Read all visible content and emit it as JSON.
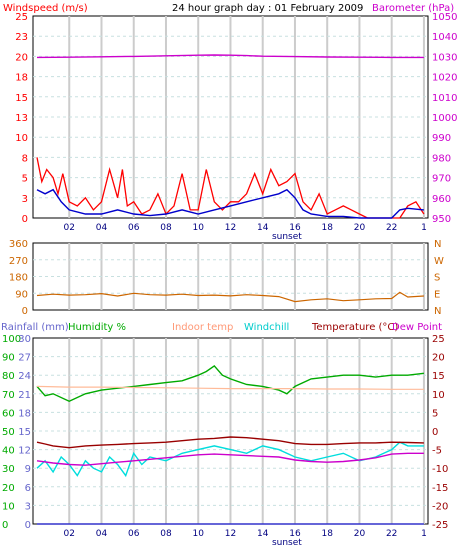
{
  "chart_data": [
    {
      "type": "line",
      "title": "24 hour graph day : 01 February 2009",
      "left_axis_label": "Windspeed (m/s)",
      "right_axis_label": "Barometer (hPa)",
      "x_ticks": [
        "02",
        "04",
        "06",
        "08",
        "10",
        "12",
        "14",
        "16",
        "18",
        "20",
        "22",
        "1"
      ],
      "x_note": "sunset",
      "y_left": {
        "range": [
          0,
          25
        ],
        "ticks": [
          "0",
          "3",
          "5",
          "8",
          "10",
          "13",
          "15",
          "18",
          "20",
          "23",
          "25"
        ]
      },
      "y_right": {
        "range": [
          950,
          1050
        ],
        "ticks": [
          "950",
          "960",
          "970",
          "980",
          "990",
          "1000",
          "1010",
          "1020",
          "1030",
          "1040",
          "1050"
        ]
      },
      "grid": true,
      "series": [
        {
          "name": "Barometer (hPa)",
          "axis": "right",
          "color": "#cc00cc",
          "x": [
            0,
            2,
            4,
            6,
            8,
            10,
            11,
            12,
            13,
            14,
            16,
            18,
            20,
            22,
            24
          ],
          "y": [
            1029.5,
            1029.6,
            1029.8,
            1030.0,
            1030.3,
            1030.6,
            1030.7,
            1030.6,
            1030.4,
            1030.1,
            1029.9,
            1029.7,
            1029.6,
            1029.5,
            1029.5
          ]
        },
        {
          "name": "Windspeed gust (m/s)",
          "axis": "left",
          "color": "#ff0000",
          "x": [
            0,
            0.3,
            0.6,
            1,
            1.3,
            1.6,
            2,
            2.5,
            3,
            3.5,
            4,
            4.5,
            5,
            5.3,
            5.6,
            6,
            6.5,
            7,
            7.5,
            8,
            8.5,
            9,
            9.5,
            10,
            10.5,
            11,
            11.5,
            12,
            12.5,
            13,
            13.5,
            14,
            14.5,
            15,
            15.5,
            16,
            16.5,
            17,
            17.5,
            18,
            18.5,
            19,
            19.5,
            20,
            20.5,
            21,
            21.5,
            22,
            22.5,
            23,
            23.5,
            24
          ],
          "y": [
            7.5,
            4.5,
            6,
            5,
            3,
            5.5,
            2,
            1.5,
            2.5,
            1,
            2,
            6,
            2.5,
            6,
            1.5,
            2,
            0.5,
            1,
            3,
            0.5,
            1.5,
            5.5,
            1,
            1,
            6,
            2,
            1,
            2,
            2,
            3,
            5.5,
            3,
            6,
            4,
            4.5,
            5.5,
            2,
            1,
            3,
            0.5,
            1,
            1.5,
            1,
            0.5,
            0,
            0,
            0,
            0,
            0,
            1.5,
            2,
            0.5
          ]
        },
        {
          "name": "Windspeed average (m/s)",
          "axis": "left",
          "color": "#0000cc",
          "x": [
            0,
            0.5,
            1,
            1.5,
            2,
            3,
            4,
            5,
            6,
            7,
            8,
            9,
            10,
            11,
            12,
            13,
            14,
            15,
            15.5,
            16,
            16.5,
            17,
            18,
            19,
            20,
            21,
            22,
            22.5,
            23,
            24
          ],
          "y": [
            3.5,
            3,
            3.5,
            2,
            1,
            0.5,
            0.5,
            1,
            0.5,
            0.3,
            0.5,
            1,
            0.5,
            1,
            1.5,
            2,
            2.5,
            3,
            3.5,
            2.5,
            1,
            0.5,
            0.2,
            0.2,
            0,
            0,
            0,
            1,
            1.2,
            1
          ]
        }
      ]
    },
    {
      "type": "line",
      "right_axis_ticks": [
        "N",
        "W",
        "S",
        "E",
        "N"
      ],
      "y_left": {
        "range": [
          0,
          360
        ],
        "ticks": [
          "0",
          "90",
          "180",
          "270",
          "360"
        ]
      },
      "grid": true,
      "series": [
        {
          "name": "Wind direction (deg)",
          "color": "#cc6600",
          "x": [
            0,
            1,
            2,
            3,
            4,
            5,
            6,
            7,
            8,
            9,
            10,
            11,
            12,
            13,
            14,
            15,
            16,
            17,
            18,
            19,
            20,
            21,
            22,
            22.5,
            23,
            24
          ],
          "y": [
            78,
            85,
            80,
            82,
            88,
            75,
            90,
            82,
            80,
            85,
            78,
            80,
            76,
            82,
            78,
            72,
            45,
            55,
            60,
            50,
            55,
            60,
            62,
            95,
            70,
            75
          ]
        }
      ]
    },
    {
      "type": "line",
      "legend": [
        "Rainfall (mm)",
        "Humidity %",
        "Indoor temp",
        "Windchill",
        "Temperature (°C)",
        "Dew Point"
      ],
      "x_ticks": [
        "02",
        "04",
        "06",
        "08",
        "10",
        "12",
        "14",
        "16",
        "18",
        "20",
        "22",
        "1"
      ],
      "x_note": "sunset",
      "y_rain": {
        "range": [
          0,
          30
        ],
        "ticks": [
          "0",
          "3",
          "6",
          "9",
          "12",
          "15",
          "18",
          "21",
          "24",
          "27",
          "30"
        ]
      },
      "y_humidity": {
        "range": [
          0,
          100
        ],
        "ticks": [
          "0",
          "10",
          "20",
          "30",
          "40",
          "50",
          "60",
          "70",
          "80",
          "90",
          "100"
        ]
      },
      "y_temp": {
        "range": [
          -25,
          25
        ],
        "ticks": [
          "-25",
          "-20",
          "-15",
          "-10",
          "-5",
          "0",
          "5",
          "10",
          "15",
          "20",
          "25"
        ]
      },
      "grid": true,
      "series": [
        {
          "name": "Humidity %",
          "axis": "humidity",
          "color": "#00aa00",
          "x": [
            0,
            0.5,
            1,
            2,
            3,
            4,
            5,
            6,
            7,
            8,
            9,
            10,
            10.5,
            11,
            11.5,
            12,
            13,
            14,
            15,
            15.5,
            16,
            17,
            18,
            19,
            20,
            21,
            22,
            23,
            24
          ],
          "y": [
            74,
            69,
            70,
            66,
            70,
            72,
            73,
            74,
            75,
            76,
            77,
            80,
            82,
            85,
            80,
            78,
            75,
            74,
            72,
            70,
            74,
            78,
            79,
            80,
            80,
            79,
            80,
            80,
            81
          ]
        },
        {
          "name": "Indoor temp",
          "axis": "temp",
          "color": "#ffbb99",
          "x": [
            0,
            2,
            4,
            6,
            8,
            10,
            12,
            14,
            16,
            18,
            20,
            22,
            24
          ],
          "y": [
            12,
            11.8,
            11.8,
            11.7,
            11.6,
            11.5,
            11.4,
            11.4,
            11.4,
            11.3,
            11.3,
            11.2,
            11.2
          ]
        },
        {
          "name": "Windchill",
          "axis": "temp",
          "color": "#00dddd",
          "x": [
            0,
            0.5,
            1,
            1.5,
            2,
            2.5,
            3,
            3.5,
            4,
            4.5,
            5,
            5.5,
            6,
            6.5,
            7,
            8,
            9,
            10,
            11,
            12,
            13,
            14,
            15,
            16,
            17,
            18,
            19,
            20,
            21,
            22,
            22.5,
            23,
            24
          ],
          "y": [
            -10,
            -8,
            -11,
            -7,
            -9,
            -12,
            -8,
            -10,
            -11,
            -7,
            -9,
            -12,
            -6,
            -9,
            -7,
            -8,
            -6,
            -5,
            -4,
            -5,
            -6,
            -4,
            -5,
            -7,
            -8,
            -7,
            -6,
            -8,
            -7,
            -5,
            -3,
            -4,
            -4
          ]
        },
        {
          "name": "Temperature (°C)",
          "axis": "temp",
          "color": "#990000",
          "x": [
            0,
            0.5,
            1,
            2,
            3,
            4,
            5,
            6,
            7,
            8,
            9,
            10,
            11,
            12,
            13,
            14,
            15,
            16,
            17,
            18,
            19,
            20,
            21,
            22,
            23,
            24
          ],
          "y": [
            -3,
            -3.5,
            -4,
            -4.5,
            -4,
            -3.8,
            -3.6,
            -3.4,
            -3.2,
            -3.0,
            -2.6,
            -2.2,
            -2.0,
            -1.6,
            -1.8,
            -2.2,
            -2.6,
            -3.4,
            -3.6,
            -3.6,
            -3.4,
            -3.2,
            -3.2,
            -3.0,
            -3.1,
            -3.2
          ]
        },
        {
          "name": "Dew Point",
          "axis": "temp",
          "color": "#cc00cc",
          "x": [
            0,
            1,
            2,
            3,
            4,
            5,
            6,
            7,
            8,
            9,
            10,
            11,
            12,
            13,
            14,
            15,
            16,
            17,
            18,
            19,
            20,
            21,
            22,
            23,
            24
          ],
          "y": [
            -8,
            -8.6,
            -9,
            -9.2,
            -8.8,
            -8.4,
            -8,
            -7.6,
            -7.2,
            -6.8,
            -6.4,
            -6.2,
            -6.4,
            -6.6,
            -6.8,
            -7,
            -7.8,
            -8.2,
            -8.4,
            -8.2,
            -7.8,
            -7.2,
            -6.2,
            -6,
            -6
          ]
        },
        {
          "name": "Rainfall (mm)",
          "axis": "rain",
          "color": "#3333cc",
          "x": [
            0,
            24
          ],
          "y": [
            0,
            0
          ]
        }
      ]
    }
  ],
  "colors": {
    "wind_label": "#ff0000",
    "baro_label": "#cc00cc",
    "dir_axis": "#cc6600",
    "rain_label": "#6666cc",
    "humidity_label": "#00aa00",
    "indoor_label": "#ff9977",
    "windchill_label": "#00cccc",
    "temp_label": "#990000",
    "dewpoint_label": "#cc00cc"
  }
}
